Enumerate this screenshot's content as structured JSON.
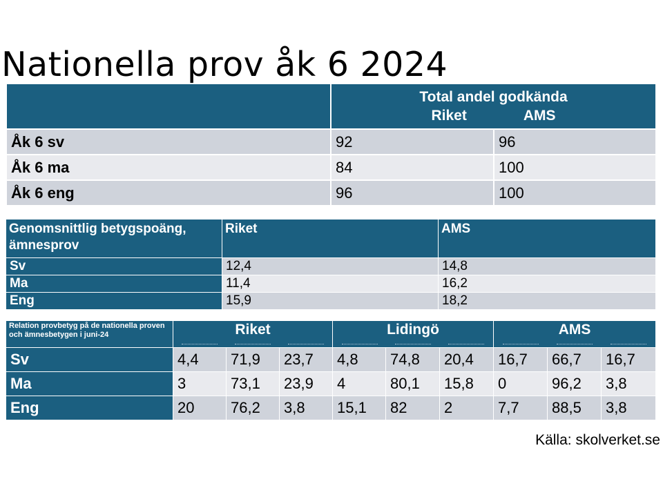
{
  "title": "Nationella prov åk 6 2024",
  "table1": {
    "header": {
      "line1": "Total andel godkända",
      "riket": "Riket",
      "ams": "AMS"
    },
    "rows": [
      {
        "label": "Åk 6 sv",
        "riket": "92",
        "ams": "96"
      },
      {
        "label": "Åk 6 ma",
        "riket": "84",
        "ams": "100"
      },
      {
        "label": "Åk 6 eng",
        "riket": "96",
        "ams": "100"
      }
    ]
  },
  "table2": {
    "header": {
      "label": "Genomsnittlig betygspoäng, ämnesprov",
      "riket": "Riket",
      "ams": "AMS"
    },
    "rows": [
      {
        "label": "Sv",
        "riket": "12,4",
        "ams": "14,8"
      },
      {
        "label": "Ma",
        "riket": "11,4",
        "ams": "16,2"
      },
      {
        "label": "Eng",
        "riket": "15,9",
        "ams": "18,2"
      }
    ]
  },
  "table3": {
    "header": {
      "label": "Relation provbetyg på de nationella proven och ämnesbetygen i juni-24",
      "groups": [
        "Riket",
        "Lidingö",
        "AMS"
      ]
    },
    "rows": [
      {
        "label": "Sv",
        "values": [
          "4,4",
          "71,9",
          "23,7",
          "4,8",
          "74,8",
          "20,4",
          "16,7",
          "66,7",
          "16,7"
        ]
      },
      {
        "label": "Ma",
        "values": [
          "3",
          "73,1",
          "23,9",
          "4",
          "80,1",
          "15,8",
          "0",
          "96,2",
          "3,8"
        ]
      },
      {
        "label": "Eng",
        "values": [
          "20",
          "76,2",
          "3,8",
          "15,1",
          "82",
          "2",
          "7,7",
          "88,5",
          "3,8"
        ]
      }
    ]
  },
  "source": "Källa: skolverket.se",
  "colors": {
    "header_blue": "#1b5f80",
    "row_dark": "#cfd3db",
    "row_light": "#e9eaee"
  }
}
